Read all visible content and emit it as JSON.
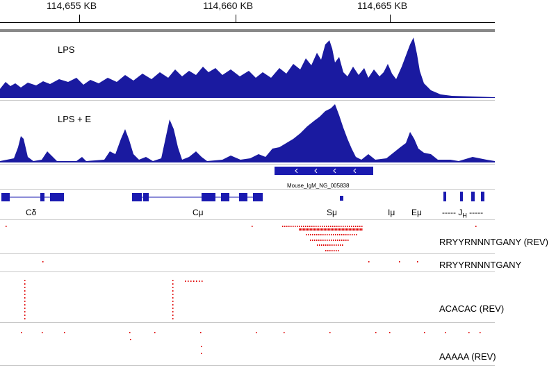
{
  "colors": {
    "coverage": "#1a1aa0",
    "feature": "#1a1ab0",
    "motif": "#e00000",
    "ruler": "#000000",
    "bar": "#808080"
  },
  "ruler": {
    "ticks": [
      {
        "label": "114,655 KB",
        "kb": 114655
      },
      {
        "label": "114,660 KB",
        "kb": 114660
      },
      {
        "label": "114,665 KB",
        "kb": 114665
      }
    ]
  },
  "tracks": {
    "lps": {
      "label": "LPS"
    },
    "lps_e": {
      "label": "LPS + E"
    }
  },
  "feature": {
    "name": "Mouse_IgM_NG_005838",
    "strand_glyph": "‹"
  },
  "regions": {
    "cdelta": "Cδ",
    "cmu": "Cμ",
    "smu": "Sμ",
    "imu": "Iμ",
    "emu": "Eμ",
    "jh_prefix": "----- J",
    "jh_sub": "H",
    "jh_suffix": " -----"
  },
  "motifs": [
    {
      "label": "RRYYRNNNTGANY (REV)"
    },
    {
      "label": "RRYYRNNNTGANY"
    },
    {
      "label": "ACACAC (REV)"
    },
    {
      "label": "AAAAA (REV)"
    }
  ]
}
